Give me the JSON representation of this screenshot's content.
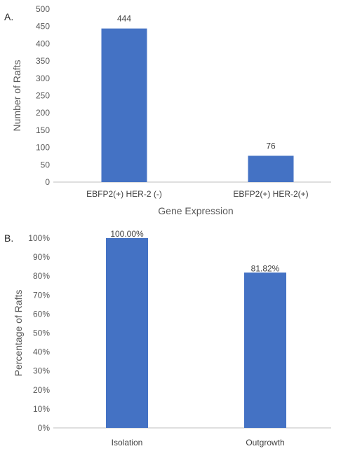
{
  "panel_a_letter": "A.",
  "panel_b_letter": "B.",
  "chart_data": [
    {
      "type": "bar",
      "categories": [
        "EBFP2(+) HER-2 (-)",
        "EBFP2(+) HER-2(+)"
      ],
      "values": [
        444,
        76
      ],
      "data_labels": [
        "444",
        "76"
      ],
      "xlabel": "Gene Expression",
      "ylabel": "Number of Rafts",
      "ylim": [
        0,
        500
      ],
      "yticks": [
        0,
        50,
        100,
        150,
        200,
        250,
        300,
        350,
        400,
        450,
        500
      ],
      "ytick_labels": [
        "0",
        "50",
        "100",
        "150",
        "200",
        "250",
        "300",
        "350",
        "400",
        "450",
        "500"
      ],
      "color": "#4472c4",
      "grid": false
    },
    {
      "type": "bar",
      "categories": [
        "Isolation",
        "Outgrowth"
      ],
      "values": [
        100.0,
        81.82
      ],
      "data_labels": [
        "100.00%",
        "81.82%"
      ],
      "xlabel": "",
      "ylabel": "Percentage of Rafts",
      "ylim": [
        0,
        100
      ],
      "yticks": [
        0,
        10,
        20,
        30,
        40,
        50,
        60,
        70,
        80,
        90,
        100
      ],
      "ytick_labels": [
        "0%",
        "10%",
        "20%",
        "30%",
        "40%",
        "50%",
        "60%",
        "70%",
        "80%",
        "90%",
        "100%"
      ],
      "color": "#4472c4",
      "grid": false
    }
  ]
}
